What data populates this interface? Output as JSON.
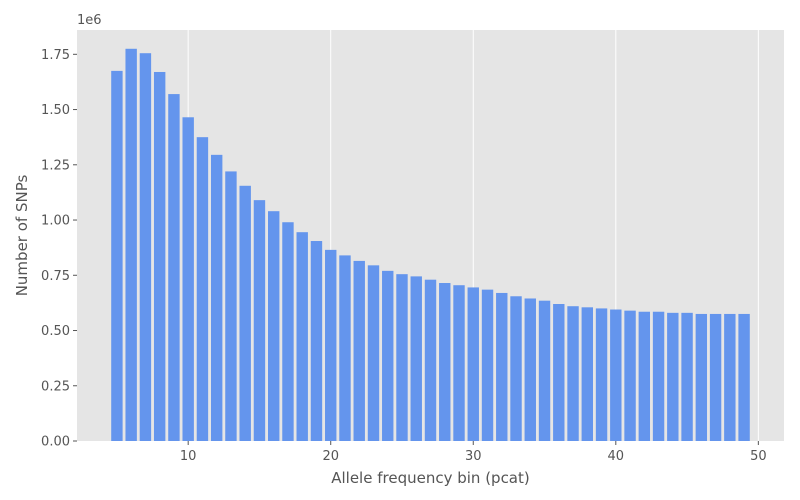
{
  "chart_data": {
    "type": "bar",
    "title": "",
    "xlabel": "Allele frequency bin (pcat)",
    "ylabel": "Number of SNPs",
    "y_offset_label": "1e6",
    "xlim": [
      2.2,
      51.8
    ],
    "ylim": [
      0,
      1.86
    ],
    "xticks": [
      10,
      20,
      30,
      40,
      50
    ],
    "xtick_labels": [
      "10",
      "20",
      "30",
      "40",
      "50"
    ],
    "yticks": [
      0.0,
      0.25,
      0.5,
      0.75,
      1.0,
      1.25,
      1.5,
      1.75
    ],
    "ytick_labels": [
      "0.00",
      "0.25",
      "0.50",
      "0.75",
      "1.00",
      "1.25",
      "1.50",
      "1.75"
    ],
    "grid": true,
    "bar_color": "#6495ED",
    "background_color": "#E5E5E5",
    "grid_color": "#FFFFFF",
    "x": [
      5,
      6,
      7,
      8,
      9,
      10,
      11,
      12,
      13,
      14,
      15,
      16,
      17,
      18,
      19,
      20,
      21,
      22,
      23,
      24,
      25,
      26,
      27,
      28,
      29,
      30,
      31,
      32,
      33,
      34,
      35,
      36,
      37,
      38,
      39,
      40,
      41,
      42,
      43,
      44,
      45,
      46,
      47,
      48,
      49
    ],
    "values": [
      1.675,
      1.775,
      1.755,
      1.67,
      1.57,
      1.465,
      1.375,
      1.295,
      1.22,
      1.155,
      1.09,
      1.04,
      0.99,
      0.945,
      0.905,
      0.865,
      0.84,
      0.815,
      0.795,
      0.77,
      0.755,
      0.745,
      0.73,
      0.715,
      0.705,
      0.695,
      0.685,
      0.67,
      0.655,
      0.645,
      0.635,
      0.62,
      0.61,
      0.605,
      0.6,
      0.595,
      0.59,
      0.585,
      0.585,
      0.58,
      0.58,
      0.575,
      0.575,
      0.575,
      0.575
    ]
  }
}
